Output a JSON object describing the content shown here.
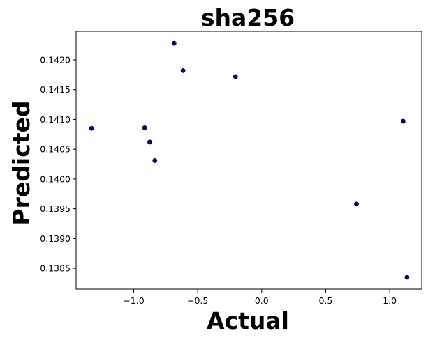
{
  "chart_data": {
    "type": "scatter",
    "title": "sha256",
    "xlabel": "Actual",
    "ylabel": "Predicted",
    "xlim": [
      -1.45,
      1.25
    ],
    "ylim": [
      0.13815,
      0.14248
    ],
    "xticks": [
      -1.0,
      -0.5,
      0.0,
      0.5,
      1.0
    ],
    "xtick_labels": [
      "−1.0",
      "−0.5",
      "0.0",
      "0.5",
      "1.0"
    ],
    "yticks": [
      0.1385,
      0.139,
      0.1395,
      0.14,
      0.1405,
      0.141,
      0.1415,
      0.142
    ],
    "ytick_labels": [
      "0.1385",
      "0.1390",
      "0.1395",
      "0.1400",
      "0.1405",
      "0.1410",
      "0.1415",
      "0.1420"
    ],
    "grid": false,
    "marker_color": "#00008b",
    "points": [
      {
        "x": -1.33,
        "y": 0.14085
      },
      {
        "x": -0.915,
        "y": 0.14086
      },
      {
        "x": -0.875,
        "y": 0.14062
      },
      {
        "x": -0.835,
        "y": 0.14031
      },
      {
        "x": -0.685,
        "y": 0.14228
      },
      {
        "x": -0.615,
        "y": 0.14182
      },
      {
        "x": -0.205,
        "y": 0.14172
      },
      {
        "x": 0.74,
        "y": 0.13958
      },
      {
        "x": 1.105,
        "y": 0.14097
      },
      {
        "x": 1.135,
        "y": 0.13835
      }
    ]
  }
}
